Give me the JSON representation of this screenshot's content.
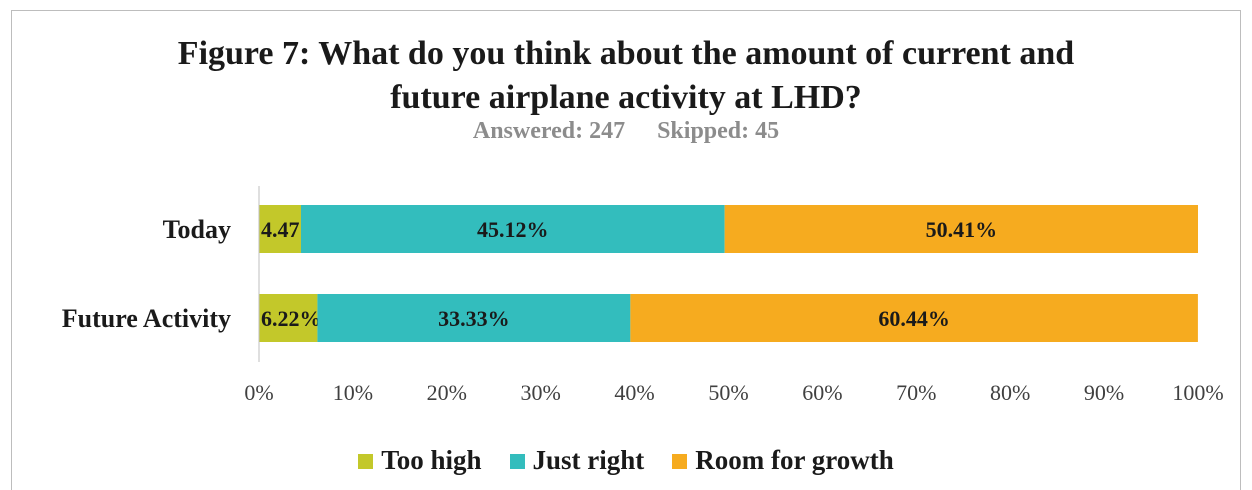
{
  "title_line1": "Figure 7: What do you think about the amount of current and",
  "title_line2": "future airplane activity at LHD?",
  "subtitle_answered": "Answered: 247",
  "subtitle_skipped": "Skipped: 45",
  "chart_data": {
    "type": "bar",
    "orientation": "horizontal",
    "stacked": true,
    "title": "Figure 7: What do you think about the amount of current and future airplane activity at LHD?",
    "categories": [
      "Today",
      "Future Activity"
    ],
    "series": [
      {
        "name": "Too high",
        "color": "#c3c82a",
        "values": [
          4.47,
          6.22
        ],
        "labels": [
          "4.47%",
          "6.22%"
        ]
      },
      {
        "name": "Just right",
        "color": "#33bdbd",
        "values": [
          45.12,
          33.33
        ],
        "labels": [
          "45.12%",
          "33.33%"
        ]
      },
      {
        "name": "Room for growth",
        "color": "#f6ab1f",
        "values": [
          50.41,
          60.44
        ],
        "labels": [
          "50.41%",
          "60.44%"
        ]
      }
    ],
    "xlim": [
      0,
      100
    ],
    "xticks": [
      "0%",
      "10%",
      "20%",
      "30%",
      "40%",
      "50%",
      "60%",
      "70%",
      "80%",
      "90%",
      "100%"
    ],
    "grid": false,
    "legend_position": "bottom"
  }
}
